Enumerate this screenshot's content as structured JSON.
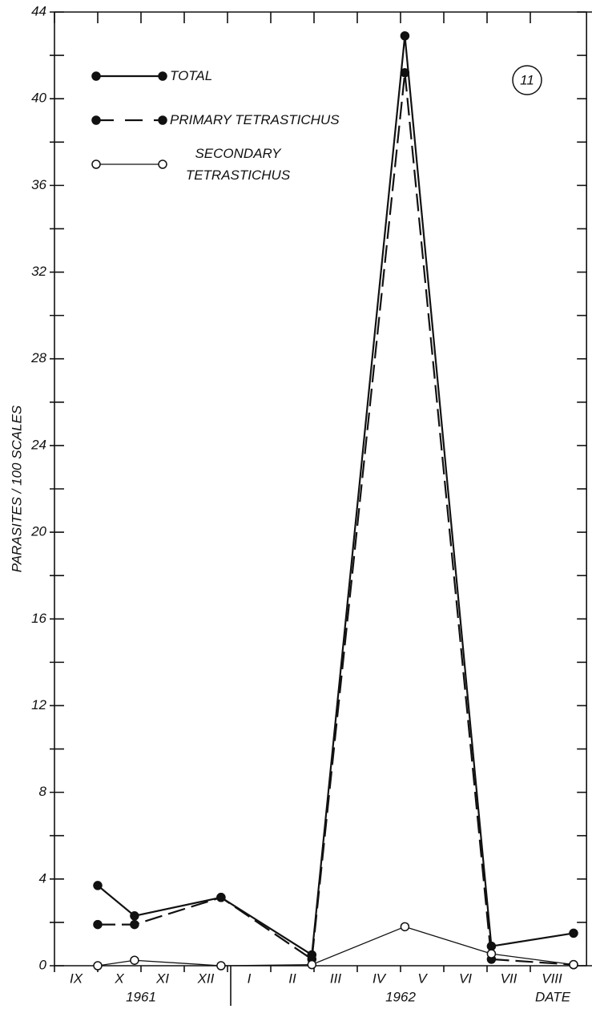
{
  "chart_data": {
    "type": "line",
    "y_label": "PARASITES / 100 SCALES",
    "x_label": "DATE",
    "annotation": "11",
    "categories": [
      "IX",
      "X",
      "XI",
      "XII",
      "I",
      "II",
      "III",
      "IV",
      "V",
      "VI",
      "VII",
      "VIII"
    ],
    "year_groups": [
      {
        "label": "1961",
        "from": 0,
        "to": 4
      },
      {
        "label": "1962",
        "from": 4,
        "to": 12
      }
    ],
    "x": [
      1.0,
      1.85,
      3.85,
      5.95,
      8.1,
      10.1,
      12.0
    ],
    "xlim": [
      0,
      12.3
    ],
    "ylim": [
      0,
      44
    ],
    "yticks": [
      0,
      4,
      8,
      12,
      16,
      20,
      24,
      28,
      32,
      36,
      40,
      44
    ],
    "minor_yticks": [
      2,
      6,
      10,
      14,
      18,
      22,
      26,
      30,
      34,
      38,
      42
    ],
    "legend": "upper left",
    "series": [
      {
        "name": "TOTAL",
        "color": "#111111",
        "dash": false,
        "marker": "filled",
        "values": [
          3.7,
          2.3,
          3.15,
          0.5,
          42.9,
          0.9,
          1.5
        ]
      },
      {
        "name": "PRIMARY TETRASTICHUS",
        "color": "#111111",
        "dash": true,
        "marker": "filled",
        "values": [
          1.9,
          1.9,
          3.15,
          0.3,
          41.2,
          0.3,
          0.05
        ]
      },
      {
        "name": "SECONDARY TETRASTICHUS",
        "color": "#111111",
        "dash": false,
        "marker": "open",
        "values": [
          0,
          0.25,
          0,
          0.05,
          1.8,
          0.55,
          0.05
        ]
      }
    ]
  }
}
